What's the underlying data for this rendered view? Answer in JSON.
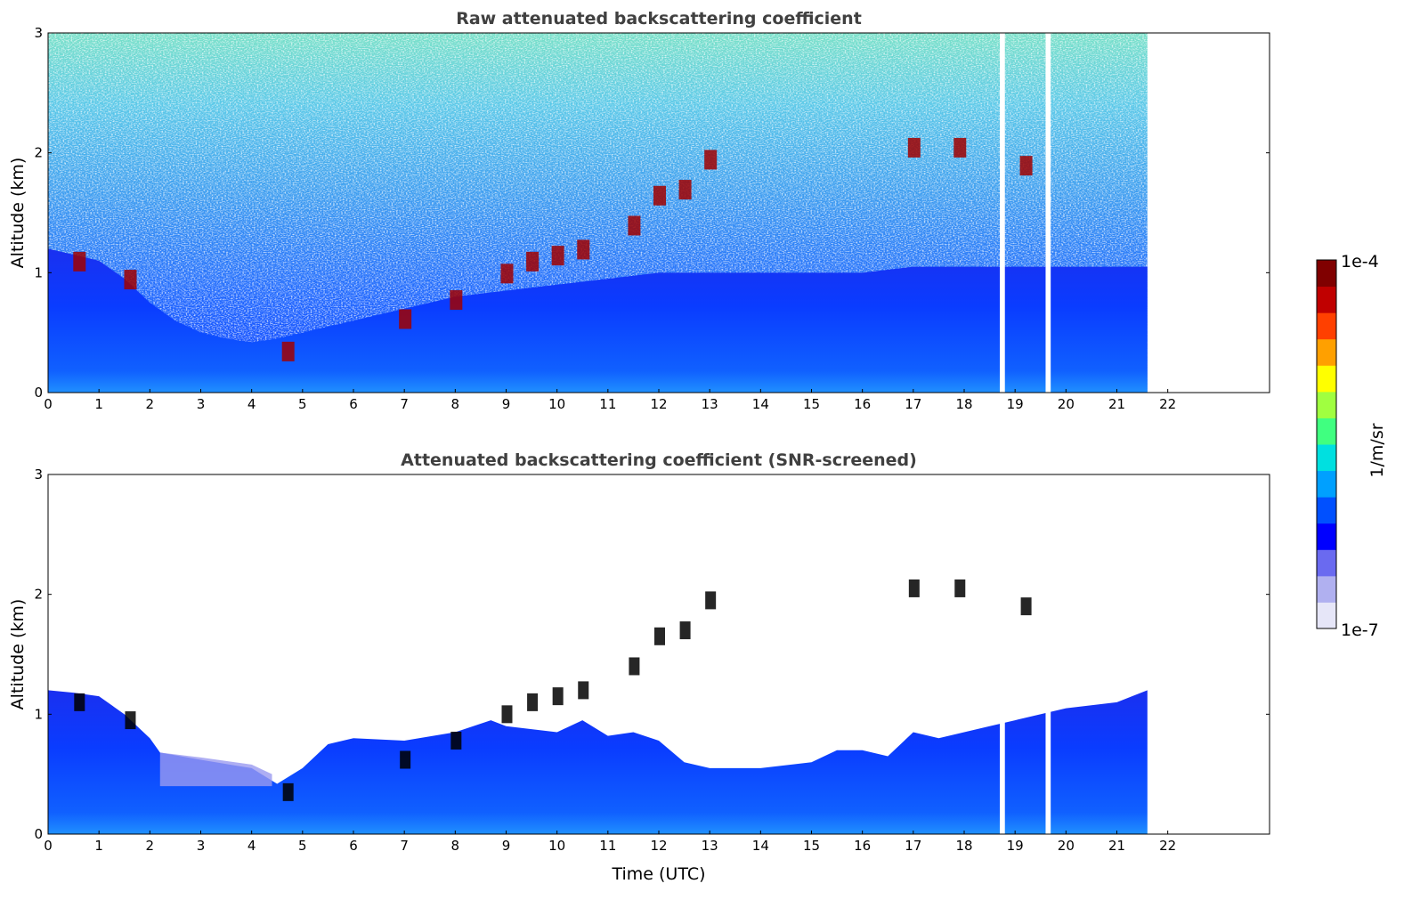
{
  "chart_data": [
    {
      "type": "heatmap",
      "title": "Raw attenuated backscattering coefficient",
      "xlabel": "",
      "ylabel": "Altitude (km)",
      "xlim": [
        0,
        24
      ],
      "ylim": [
        0,
        3
      ],
      "x_ticks": [
        "0",
        "1",
        "2",
        "3",
        "4",
        "5",
        "6",
        "7",
        "8",
        "9",
        "10",
        "11",
        "12",
        "13",
        "14",
        "15",
        "16",
        "17",
        "18",
        "19",
        "20",
        "21",
        "22"
      ],
      "y_ticks": [
        "0",
        "1",
        "2",
        "3"
      ],
      "data_end_time": 21.6,
      "data_gaps": [
        [
          18.7,
          18.8
        ],
        [
          19.6,
          19.7
        ]
      ],
      "boundary_layer_top_km": [
        [
          0,
          1.2
        ],
        [
          0.5,
          1.15
        ],
        [
          1,
          1.1
        ],
        [
          1.5,
          0.95
        ],
        [
          2,
          0.75
        ],
        [
          2.5,
          0.6
        ],
        [
          3,
          0.5
        ],
        [
          3.5,
          0.45
        ],
        [
          4,
          0.42
        ],
        [
          4.5,
          0.45
        ],
        [
          5,
          0.5
        ],
        [
          5.5,
          0.55
        ],
        [
          6,
          0.6
        ],
        [
          7,
          0.7
        ],
        [
          8,
          0.8
        ],
        [
          9,
          0.85
        ],
        [
          10,
          0.9
        ],
        [
          11,
          0.95
        ],
        [
          12,
          1.0
        ],
        [
          13,
          1.0
        ],
        [
          14,
          1.0
        ],
        [
          15,
          1.0
        ],
        [
          16,
          1.0
        ],
        [
          17,
          1.05
        ],
        [
          18,
          1.05
        ],
        [
          19,
          1.05
        ],
        [
          20,
          1.05
        ],
        [
          21,
          1.05
        ],
        [
          21.6,
          1.05
        ]
      ],
      "cloud_layer_km": [
        [
          0.6,
          1.1
        ],
        [
          1.6,
          0.95
        ],
        [
          4.7,
          0.35
        ],
        [
          7,
          0.62
        ],
        [
          8,
          0.78
        ],
        [
          9,
          1.0
        ],
        [
          9.5,
          1.1
        ],
        [
          10,
          1.15
        ],
        [
          10.5,
          1.2
        ],
        [
          11.5,
          1.4
        ],
        [
          12,
          1.65
        ],
        [
          12.5,
          1.7
        ],
        [
          13,
          1.95
        ],
        [
          17,
          2.05
        ],
        [
          17.9,
          2.05
        ],
        [
          19.2,
          1.9
        ]
      ]
    },
    {
      "type": "heatmap",
      "title": "Attenuated backscattering coefficient (SNR-screened)",
      "xlabel": "Time (UTC)",
      "ylabel": "Altitude (km)",
      "xlim": [
        0,
        24
      ],
      "ylim": [
        0,
        3
      ],
      "x_ticks": [
        "0",
        "1",
        "2",
        "3",
        "4",
        "5",
        "6",
        "7",
        "8",
        "9",
        "10",
        "11",
        "12",
        "13",
        "14",
        "15",
        "16",
        "17",
        "18",
        "19",
        "20",
        "21",
        "22"
      ],
      "y_ticks": [
        "0",
        "1",
        "2",
        "3"
      ],
      "data_end_time": 21.6,
      "screened_top_km": [
        [
          0,
          1.2
        ],
        [
          0.5,
          1.18
        ],
        [
          1,
          1.15
        ],
        [
          1.5,
          1.0
        ],
        [
          2,
          0.8
        ],
        [
          2.2,
          0.68
        ],
        [
          3,
          0.62
        ],
        [
          4,
          0.55
        ],
        [
          4.5,
          0.42
        ],
        [
          5,
          0.55
        ],
        [
          5.5,
          0.75
        ],
        [
          6,
          0.8
        ],
        [
          7,
          0.78
        ],
        [
          8,
          0.85
        ],
        [
          8.7,
          0.95
        ],
        [
          9,
          0.9
        ],
        [
          10,
          0.85
        ],
        [
          10.5,
          0.95
        ],
        [
          11,
          0.82
        ],
        [
          11.5,
          0.85
        ],
        [
          12,
          0.78
        ],
        [
          12.5,
          0.6
        ],
        [
          13,
          0.55
        ],
        [
          14,
          0.55
        ],
        [
          15,
          0.6
        ],
        [
          15.5,
          0.7
        ],
        [
          16,
          0.7
        ],
        [
          16.5,
          0.65
        ],
        [
          17,
          0.85
        ],
        [
          17.5,
          0.8
        ],
        [
          18,
          0.85
        ],
        [
          18.5,
          0.9
        ],
        [
          19,
          0.95
        ],
        [
          20,
          1.05
        ],
        [
          21,
          1.1
        ],
        [
          21.6,
          1.2
        ]
      ]
    }
  ],
  "colorbar": {
    "label": "1/m/sr",
    "max_label": "1e-4",
    "min_label": "1e-7",
    "scale": "log",
    "range": [
      1e-07,
      0.0001
    ],
    "colormap": "jet",
    "colors": [
      "#e6e6f8",
      "#b0b0f0",
      "#6a6af0",
      "#0000ff",
      "#0050ff",
      "#00a0ff",
      "#00e0e0",
      "#40ff80",
      "#a0ff40",
      "#ffff00",
      "#ffa000",
      "#ff4000",
      "#c00000",
      "#800000"
    ]
  }
}
